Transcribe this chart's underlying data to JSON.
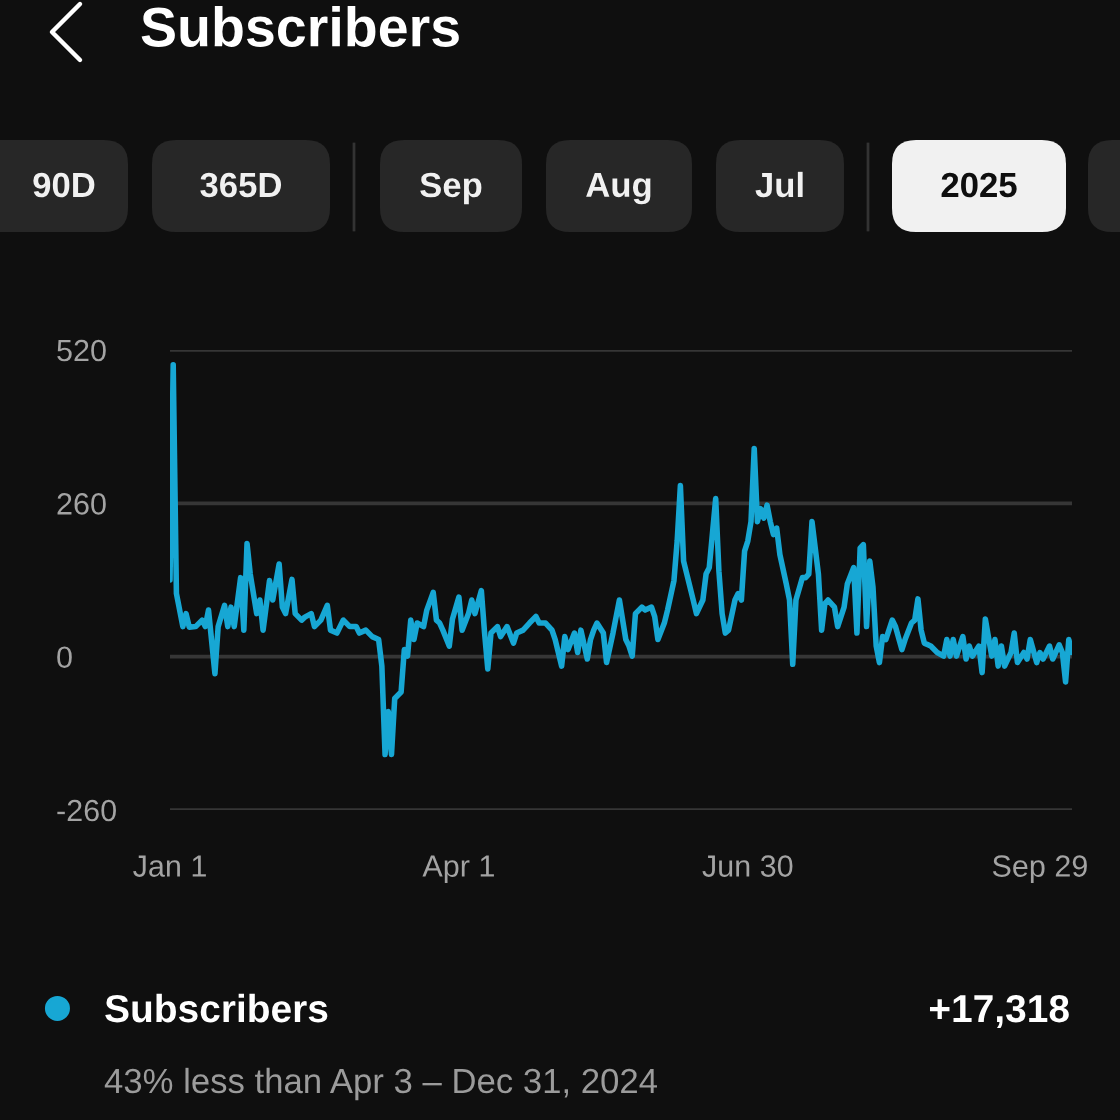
{
  "chart_data": {
    "type": "line",
    "title": "Subscribers",
    "annotations": [
      "90D",
      "365D",
      "Sep",
      "Aug",
      "Jul",
      "2025",
      "+17,318",
      "43% less than Apr 3 – Dec 31, 2024"
    ],
    "xlim": [
      "2025-01-01",
      "2025-10-09"
    ],
    "xticks": [
      {
        "value": "2025-01-01",
        "label": "Jan 1"
      },
      {
        "value": "2025-04-01",
        "label": "Apr 1"
      },
      {
        "value": "2025-06-30",
        "label": "Jun 30"
      },
      {
        "value": "2025-09-29",
        "label": "Sep 29"
      }
    ],
    "ylim": [
      -260,
      520
    ],
    "yticks": [
      520,
      260,
      0,
      -260
    ],
    "grid": "y",
    "legend": "bottom",
    "series": [
      {
        "name": "Subscribers",
        "color": "#17a7d4",
        "x": [
          "2025-01-01",
          "2025-01-02",
          "2025-01-03",
          "2025-01-05",
          "2025-01-06",
          "2025-01-07",
          "2025-01-09",
          "2025-01-11",
          "2025-01-12",
          "2025-01-13",
          "2025-01-15",
          "2025-01-16",
          "2025-01-18",
          "2025-01-19",
          "2025-01-20",
          "2025-01-21",
          "2025-01-23",
          "2025-01-24",
          "2025-01-25",
          "2025-01-26",
          "2025-01-28",
          "2025-01-29",
          "2025-01-30",
          "2025-02-01",
          "2025-02-02",
          "2025-02-04",
          "2025-02-05",
          "2025-02-06",
          "2025-02-08",
          "2025-02-09",
          "2025-02-11",
          "2025-02-12",
          "2025-02-14",
          "2025-02-15",
          "2025-02-17",
          "2025-02-19",
          "2025-02-20",
          "2025-02-22",
          "2025-02-24",
          "2025-02-26",
          "2025-02-28",
          "2025-03-01",
          "2025-03-03",
          "2025-03-05",
          "2025-03-07",
          "2025-03-08",
          "2025-03-09",
          "2025-03-10",
          "2025-03-11",
          "2025-03-12",
          "2025-03-14",
          "2025-03-15",
          "2025-03-16",
          "2025-03-17",
          "2025-03-18",
          "2025-03-19",
          "2025-03-21",
          "2025-03-22",
          "2025-03-24",
          "2025-03-25",
          "2025-03-26",
          "2025-03-27",
          "2025-03-29",
          "2025-03-30",
          "2025-04-01",
          "2025-04-02",
          "2025-04-04",
          "2025-04-05",
          "2025-04-06",
          "2025-04-08",
          "2025-04-09",
          "2025-04-10",
          "2025-04-11",
          "2025-04-13",
          "2025-04-14",
          "2025-04-16",
          "2025-04-18",
          "2025-04-19",
          "2025-04-21",
          "2025-04-23",
          "2025-04-25",
          "2025-04-26",
          "2025-04-28",
          "2025-04-30",
          "2025-05-01",
          "2025-05-03",
          "2025-05-04",
          "2025-05-05",
          "2025-05-07",
          "2025-05-08",
          "2025-05-09",
          "2025-05-11",
          "2025-05-12",
          "2025-05-13",
          "2025-05-14",
          "2025-05-16",
          "2025-05-17",
          "2025-05-19",
          "2025-05-21",
          "2025-05-23",
          "2025-05-24",
          "2025-05-25",
          "2025-05-26",
          "2025-05-28",
          "2025-05-29",
          "2025-05-31",
          "2025-06-01",
          "2025-06-02",
          "2025-06-04",
          "2025-06-05",
          "2025-06-07",
          "2025-06-08",
          "2025-06-09",
          "2025-06-10",
          "2025-06-11",
          "2025-06-13",
          "2025-06-14",
          "2025-06-16",
          "2025-06-17",
          "2025-06-18",
          "2025-06-20",
          "2025-06-21",
          "2025-06-22",
          "2025-06-23",
          "2025-06-24",
          "2025-06-26",
          "2025-06-27",
          "2025-06-28",
          "2025-06-29",
          "2025-06-30",
          "2025-07-01",
          "2025-07-02",
          "2025-07-03",
          "2025-07-04",
          "2025-07-05",
          "2025-07-06",
          "2025-07-07",
          "2025-07-08",
          "2025-07-09",
          "2025-07-10",
          "2025-07-12",
          "2025-07-13",
          "2025-07-14",
          "2025-07-15",
          "2025-07-17",
          "2025-07-18",
          "2025-07-19",
          "2025-07-20",
          "2025-07-22",
          "2025-07-23",
          "2025-07-24",
          "2025-07-25",
          "2025-07-27",
          "2025-07-28",
          "2025-07-30",
          "2025-07-31",
          "2025-08-02",
          "2025-08-03",
          "2025-08-04",
          "2025-08-05",
          "2025-08-06",
          "2025-08-07",
          "2025-08-08",
          "2025-08-09",
          "2025-08-10",
          "2025-08-11",
          "2025-08-12",
          "2025-08-14",
          "2025-08-15",
          "2025-08-17",
          "2025-08-18",
          "2025-08-20",
          "2025-08-21",
          "2025-08-22",
          "2025-08-23",
          "2025-08-24",
          "2025-08-26",
          "2025-08-28",
          "2025-08-30",
          "2025-08-31",
          "2025-09-01",
          "2025-09-02",
          "2025-09-03",
          "2025-09-05",
          "2025-09-06",
          "2025-09-07",
          "2025-09-08",
          "2025-09-10",
          "2025-09-11",
          "2025-09-12",
          "2025-09-14",
          "2025-09-15",
          "2025-09-16",
          "2025-09-17",
          "2025-09-18",
          "2025-09-20",
          "2025-09-21",
          "2025-09-22",
          "2025-09-24",
          "2025-09-25",
          "2025-09-26",
          "2025-09-28",
          "2025-09-29",
          "2025-09-30",
          "2025-10-02",
          "2025-10-03",
          "2025-10-05",
          "2025-10-06",
          "2025-10-07",
          "2025-10-08",
          "2025-10-09"
        ],
        "values": [
          130,
          495,
          107,
          51,
          73,
          50,
          51,
          62,
          51,
          79,
          -29,
          51,
          87,
          51,
          84,
          51,
          134,
          45,
          192,
          140,
          73,
          96,
          45,
          129,
          96,
          157,
          84,
          73,
          131,
          73,
          62,
          67,
          73,
          51,
          62,
          87,
          45,
          40,
          62,
          51,
          51,
          40,
          45,
          34,
          29,
          -16,
          -166,
          -93,
          -166,
          -71,
          -60,
          12,
          1,
          62,
          29,
          57,
          51,
          79,
          109,
          62,
          57,
          45,
          18,
          64,
          101,
          45,
          73,
          96,
          73,
          112,
          40,
          -21,
          40,
          51,
          34,
          51,
          23,
          40,
          45,
          57,
          68,
          57,
          57,
          45,
          29,
          -16,
          34,
          12,
          40,
          7,
          45,
          -4,
          29,
          45,
          57,
          40,
          -10,
          40,
          96,
          29,
          18,
          1,
          73,
          84,
          79,
          84,
          68,
          29,
          57,
          79,
          129,
          196,
          290,
          162,
          140,
          96,
          73,
          96,
          140,
          151,
          268,
          145,
          73,
          40,
          45,
          96,
          107,
          96,
          179,
          196,
          229,
          353,
          229,
          251,
          235,
          257,
          229,
          207,
          218,
          173,
          123,
          96,
          -13,
          96,
          134,
          134,
          140,
          229,
          140,
          45,
          90,
          96,
          84,
          51,
          84,
          123,
          151,
          40,
          184,
          190,
          51,
          162,
          118,
          18,
          -10,
          34,
          29,
          62,
          51,
          12,
          29,
          57,
          62,
          98,
          45,
          23,
          18,
          7,
          1,
          29,
          1,
          29,
          1,
          34,
          -4,
          18,
          1,
          18,
          -27,
          64,
          1,
          29,
          -16,
          18,
          -16,
          7,
          40,
          -10,
          7,
          -4,
          29,
          -10,
          7,
          -4,
          18,
          -4,
          20,
          7,
          -43,
          29,
          7
        ]
      }
    ]
  }
}
